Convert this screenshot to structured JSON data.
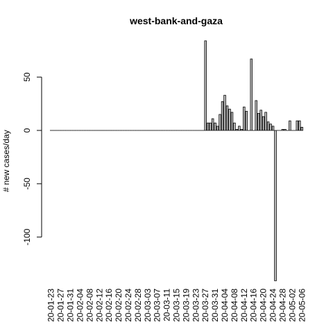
{
  "chart_data": {
    "type": "bar",
    "title": "west-bank-and-gaza",
    "ylabel": "# new cases/day",
    "xlabel": "",
    "ylim": [
      -140,
      84
    ],
    "yticks": [
      -100,
      -50,
      0,
      50
    ],
    "x_tick_labels": [
      "20-01-23",
      "20-01-27",
      "20-01-31",
      "20-02-04",
      "20-02-08",
      "20-02-12",
      "20-02-16",
      "20-02-20",
      "20-02-24",
      "20-02-28",
      "20-03-03",
      "20-03-07",
      "20-03-11",
      "20-03-15",
      "20-03-19",
      "20-03-23",
      "20-03-27",
      "20-03-31",
      "20-04-04",
      "20-04-08",
      "20-04-12",
      "20-04-16",
      "20-04-20",
      "20-04-24",
      "20-04-28",
      "20-05-02",
      "20-05-06"
    ],
    "start_date": "2020-01-23",
    "values": [
      0,
      0,
      0,
      0,
      0,
      0,
      0,
      0,
      0,
      0,
      0,
      0,
      0,
      0,
      0,
      0,
      0,
      0,
      0,
      0,
      0,
      0,
      0,
      0,
      0,
      0,
      0,
      0,
      0,
      0,
      0,
      0,
      0,
      0,
      0,
      0,
      0,
      0,
      0,
      0,
      0,
      0,
      0,
      0,
      0,
      0,
      0,
      0,
      0,
      0,
      0,
      0,
      0,
      0,
      0,
      0,
      0,
      0,
      0,
      0,
      0,
      0,
      0,
      0,
      84,
      7,
      7,
      11,
      7,
      4,
      15,
      27,
      33,
      23,
      20,
      17,
      7,
      1,
      4,
      1,
      22,
      18,
      0,
      67,
      0,
      28,
      16,
      19,
      13,
      17,
      8,
      6,
      4,
      -141,
      0,
      0,
      1,
      1,
      0,
      9,
      0,
      0,
      9,
      9,
      3
    ]
  }
}
